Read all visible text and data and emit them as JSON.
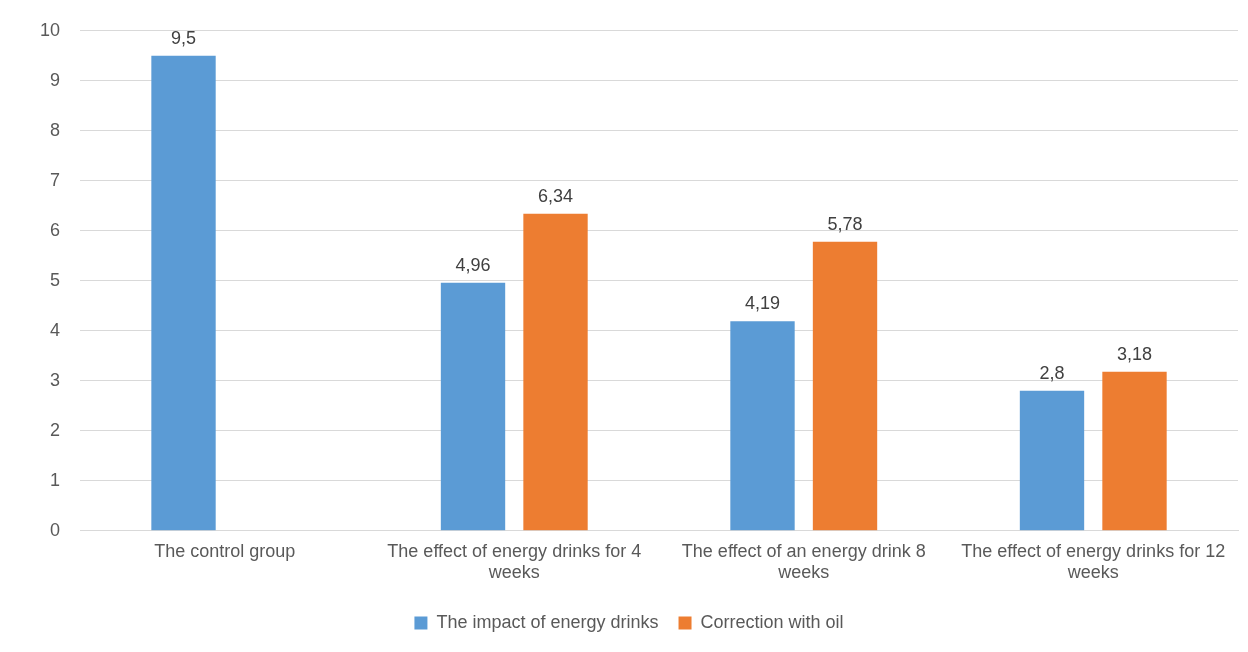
{
  "chart_data": {
    "type": "bar",
    "categories": [
      "The control group",
      "The effect of energy drinks for 4 weeks",
      "The effect of an energy drink 8 weeks",
      "The effect of energy drinks for 12 weeks"
    ],
    "series": [
      {
        "name": "The impact of energy drinks",
        "color": "#5b9bd5",
        "values": [
          9.5,
          4.96,
          4.19,
          2.8
        ],
        "value_labels": [
          "9,5",
          "4,96",
          "4,19",
          "2,8"
        ]
      },
      {
        "name": "Correction with oil",
        "color": "#ed7d31",
        "values": [
          null,
          6.34,
          5.78,
          3.18
        ],
        "value_labels": [
          null,
          "6,34",
          "5,78",
          "3,18"
        ]
      }
    ],
    "ylim": [
      0,
      10
    ],
    "yticks": [
      0,
      1,
      2,
      3,
      4,
      5,
      6,
      7,
      8,
      9,
      10
    ],
    "grid": "y",
    "legend": "bottom"
  }
}
